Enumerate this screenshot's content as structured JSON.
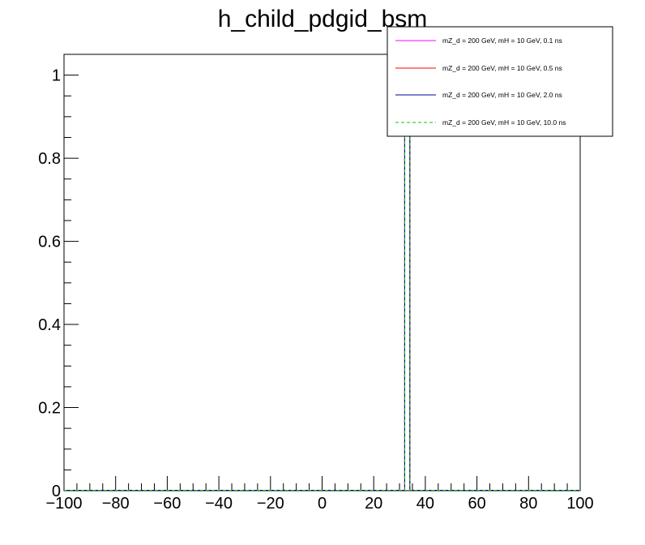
{
  "chart_data": {
    "type": "line",
    "title": "h_child_pdgid_bsm",
    "xlabel": "",
    "ylabel": "",
    "xlim": [
      -100,
      100
    ],
    "ylim": [
      0,
      1.05
    ],
    "grid": false,
    "legend_position": "top-right",
    "x_ticks": [
      "−100",
      "−80",
      "−60",
      "−40",
      "−20",
      "0",
      "20",
      "40",
      "60",
      "80",
      "100"
    ],
    "y_ticks": [
      "0",
      "0.2",
      "0.4",
      "0.6",
      "0.8",
      "1"
    ],
    "bin_width": 2,
    "series": [
      {
        "name": "mZ_d = 200 GeV, mH = 10 GeV, 0.1 ns",
        "color": "#ff00ff",
        "dash": "solid",
        "bin_low": 32,
        "bin_high": 34,
        "value": 1.0
      },
      {
        "name": "mZ_d = 200 GeV, mH = 10 GeV, 0.5 ns",
        "color": "#ff0000",
        "dash": "solid",
        "bin_low": 32,
        "bin_high": 34,
        "value": 1.0
      },
      {
        "name": "mZ_d = 200 GeV, mH = 10 GeV, 2.0 ns",
        "color": "#000099",
        "dash": "solid",
        "bin_low": 32,
        "bin_high": 34,
        "value": 1.0
      },
      {
        "name": "mZ_d = 200 GeV, mH = 10 GeV, 10.0 ns",
        "color": "#00cc00",
        "dash": "dashed",
        "bin_low": 32,
        "bin_high": 34,
        "value": 1.0
      }
    ]
  }
}
